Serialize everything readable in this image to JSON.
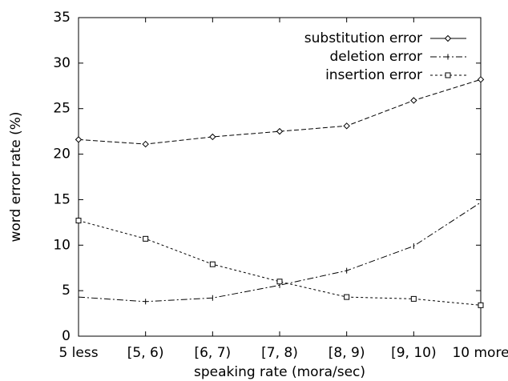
{
  "chart_data": {
    "type": "line",
    "x_label": "speaking rate (mora/sec)",
    "y_label": "word error rate (%)",
    "categories": [
      "5 less",
      "[5, 6)",
      "[6, 7)",
      "[7, 8)",
      "[8, 9)",
      "[9, 10)",
      "10 more"
    ],
    "series": [
      {
        "name": "substitution error",
        "color": "#000000",
        "marker": "diamond",
        "values": [
          21.6,
          21.1,
          21.9,
          22.5,
          23.1,
          25.9,
          28.2
        ]
      },
      {
        "name": "deletion error",
        "color": "#000000",
        "marker": "tick",
        "values": [
          4.3,
          3.8,
          4.2,
          5.6,
          7.2,
          9.9,
          14.7
        ]
      },
      {
        "name": "insertion error",
        "color": "#000000",
        "marker": "square",
        "values": [
          12.7,
          10.7,
          7.9,
          6.0,
          4.3,
          4.1,
          3.4
        ]
      }
    ],
    "ylim": [
      0,
      35
    ],
    "yticks": [
      0,
      5,
      10,
      15,
      20,
      25,
      30,
      35
    ],
    "grid": false,
    "legend": "top-right"
  }
}
